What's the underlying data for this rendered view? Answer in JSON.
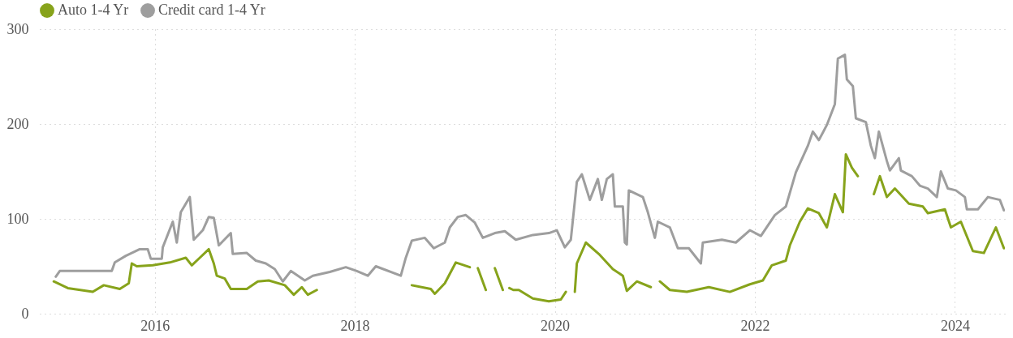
{
  "chart_data": {
    "type": "line",
    "xlim": [
      2014.85,
      2024.5
    ],
    "xticks": [
      2016,
      2018,
      2020,
      2022,
      2024
    ],
    "ylim": [
      0,
      300
    ],
    "yticks": [
      0,
      100,
      200,
      300
    ],
    "grid": true,
    "legend": "top left",
    "line_style": "solid",
    "series": [
      {
        "name": "Auto 1-4 Yr",
        "color": "#87a31b",
        "x": [
          2014.99,
          2015.13,
          2015.38,
          2015.49,
          2015.65,
          2015.74,
          2015.77,
          2015.82,
          2015.98,
          2016.15,
          2016.31,
          2016.37,
          2016.45,
          2016.54,
          2016.59,
          2016.62,
          2016.7,
          2016.76,
          2016.92,
          2017.03,
          2017.14,
          2017.3,
          2017.39,
          2017.47,
          2017.53,
          2017.62,
          2018.0,
          2018.57,
          2018.76,
          2018.8,
          2018.9,
          2019.01,
          2019.15,
          2019.18,
          2019.23,
          2019.31,
          2019.35,
          2019.4,
          2019.48,
          2019.52,
          2019.545,
          2019.585,
          2019.64,
          2019.78,
          2019.94,
          2020.06,
          2020.11,
          2020.14,
          2020.2,
          2020.22,
          2020.31,
          2020.44,
          2020.58,
          2020.68,
          2020.72,
          2020.82,
          2020.96,
          2020.99,
          2021.05,
          2021.15,
          2021.32,
          2021.54,
          2021.75,
          2021.95,
          2022.08,
          2022.17,
          2022.31,
          2022.35,
          2022.45,
          2022.53,
          2022.64,
          2022.72,
          2022.8,
          2022.88,
          2022.91,
          2022.97,
          2023.03,
          2023.07,
          2023.19,
          2023.25,
          2023.32,
          2023.4,
          2023.54,
          2023.68,
          2023.73,
          2023.9,
          2023.96,
          2024.06,
          2024.18,
          2024.29,
          2024.41,
          2024.49
        ],
        "values": [
          34,
          27,
          23,
          30,
          26,
          32,
          53,
          50,
          51,
          54,
          59,
          51,
          59,
          68,
          53,
          40,
          37,
          26,
          26,
          34,
          35,
          30,
          20,
          28,
          20,
          25,
          null,
          30,
          26,
          21,
          32,
          54,
          49,
          null,
          48,
          25,
          null,
          48,
          25,
          null,
          27,
          25,
          25,
          16,
          13,
          15,
          23,
          null,
          23,
          53,
          75,
          63,
          47,
          40,
          24,
          34,
          28,
          null,
          34,
          25,
          23,
          28,
          23,
          31,
          35,
          51,
          56,
          72,
          97,
          111,
          106,
          91,
          126,
          107,
          168,
          154,
          145,
          null,
          126,
          145,
          123,
          132,
          116,
          113,
          106,
          110,
          91,
          97,
          66,
          64,
          91,
          69
        ]
      },
      {
        "name": "Credit card 1-4 Yr",
        "color": "#9e9e9e",
        "x": [
          2015.01,
          2015.05,
          2015.57,
          2015.6,
          2015.71,
          2015.85,
          2015.93,
          2015.96,
          2016.07,
          2016.08,
          2016.18,
          2016.22,
          2016.26,
          2016.35,
          2016.39,
          2016.48,
          2016.54,
          2016.59,
          2016.64,
          2016.76,
          2016.78,
          2016.92,
          2017.01,
          2017.11,
          2017.2,
          2017.28,
          2017.36,
          2017.5,
          2017.58,
          2017.75,
          2017.91,
          2018.02,
          2018.13,
          2018.21,
          2018.46,
          2018.51,
          2018.57,
          2018.7,
          2018.79,
          2018.9,
          2018.95,
          2019.03,
          2019.11,
          2019.2,
          2019.28,
          2019.4,
          2019.5,
          2019.61,
          2019.78,
          2019.94,
          2020.02,
          2020.1,
          2020.16,
          2020.22,
          2020.27,
          2020.35,
          2020.43,
          2020.47,
          2020.52,
          2020.58,
          2020.6,
          2020.68,
          2020.7,
          2020.72,
          2020.74,
          2020.88,
          2020.93,
          2021.0,
          2021.03,
          2021.15,
          2021.23,
          2021.34,
          2021.46,
          2021.48,
          2021.67,
          2021.81,
          2021.95,
          2022.06,
          2022.2,
          2022.31,
          2022.41,
          2022.53,
          2022.58,
          2022.64,
          2022.72,
          2022.8,
          2022.83,
          2022.9,
          2022.92,
          2022.98,
          2023.01,
          2023.11,
          2023.16,
          2023.2,
          2023.24,
          2023.32,
          2023.35,
          2023.44,
          2023.46,
          2023.57,
          2023.65,
          2023.73,
          2023.82,
          2023.86,
          2023.93,
          2024.01,
          2024.1,
          2024.12,
          2024.23,
          2024.33,
          2024.45,
          2024.49
        ],
        "values": [
          39,
          45,
          45,
          54,
          61,
          68,
          68,
          58,
          58,
          70,
          97,
          75,
          107,
          123,
          78,
          88,
          102,
          101,
          72,
          85,
          63,
          64,
          56,
          53,
          47,
          34,
          45,
          35,
          40,
          44,
          49,
          45,
          40,
          50,
          40,
          59,
          77,
          80,
          69,
          75,
          91,
          102,
          104,
          96,
          80,
          85,
          87,
          78,
          83,
          85,
          88,
          70,
          78,
          139,
          147,
          120,
          142,
          120,
          142,
          147,
          113,
          113,
          75,
          73,
          130,
          123,
          107,
          80,
          97,
          91,
          69,
          69,
          53,
          75,
          78,
          75,
          88,
          82,
          104,
          113,
          149,
          177,
          192,
          183,
          199,
          221,
          269,
          273,
          247,
          240,
          206,
          202,
          177,
          164,
          192,
          161,
          151,
          164,
          151,
          145,
          135,
          132,
          123,
          150,
          132,
          130,
          123,
          110,
          110,
          123,
          120,
          109
        ]
      }
    ]
  }
}
